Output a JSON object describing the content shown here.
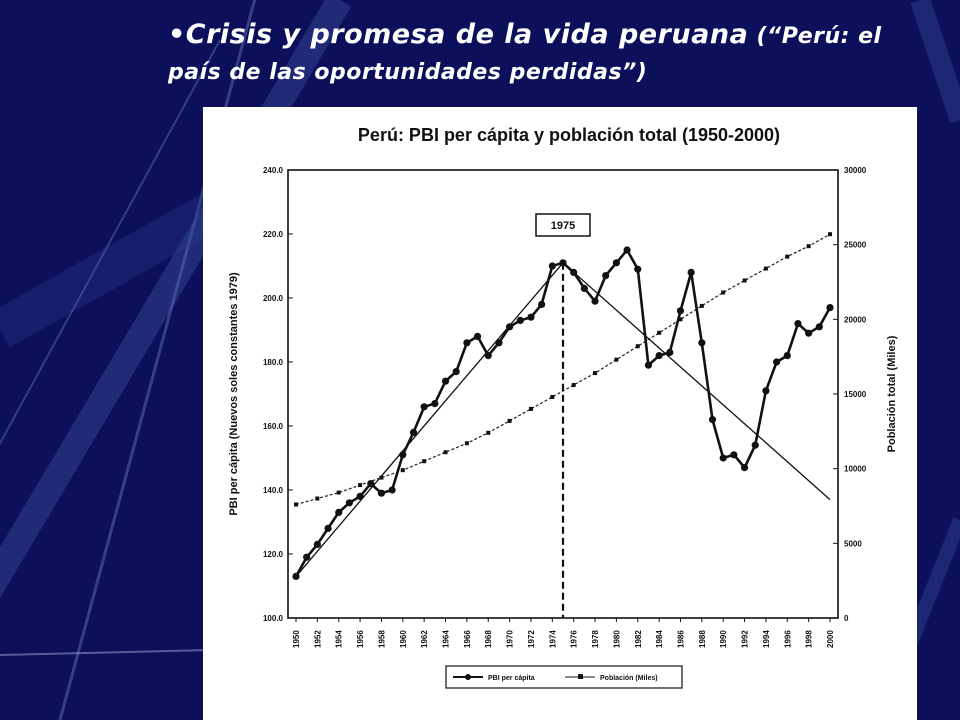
{
  "slide": {
    "title_main": "•Crisis y promesa de la vida peruana",
    "title_sub": " (“Perú: el país de las oportunidades perdidas”)"
  },
  "colors": {
    "background": "#0c0f5a",
    "title": "#ffffff",
    "chart_ink": "#111111"
  },
  "chart_data": {
    "type": "line",
    "title": "Perú: PBI per cápita y población total (1950-2000)",
    "ylabel": "PBI per cápita (Nuevos soles constantes 1979)",
    "y2label": "Población total (Miles)",
    "ylim": [
      100,
      240
    ],
    "y2lim": [
      0,
      30000
    ],
    "yticks": [
      "100.0",
      "120.0",
      "140.0",
      "160.0",
      "180.0",
      "200.0",
      "220.0",
      "240.0"
    ],
    "y2ticks": [
      "0",
      "5000",
      "10000",
      "15000",
      "20000",
      "25000",
      "30000"
    ],
    "xticks": [
      "1950",
      "1952",
      "1954",
      "1956",
      "1958",
      "1960",
      "1962",
      "1964",
      "1966",
      "1968",
      "1970",
      "1972",
      "1974",
      "1976",
      "1978",
      "1980",
      "1982",
      "1984",
      "1986",
      "1988",
      "1990",
      "1992",
      "1994",
      "1996",
      "1998",
      "2000"
    ],
    "annotation": "1975",
    "annotation_year": 1975,
    "series": [
      {
        "name": "PBI per cápita",
        "axis": "left",
        "x": [
          1950,
          1951,
          1952,
          1953,
          1954,
          1955,
          1956,
          1957,
          1958,
          1959,
          1960,
          1961,
          1962,
          1963,
          1964,
          1965,
          1966,
          1967,
          1968,
          1969,
          1970,
          1971,
          1972,
          1973,
          1974,
          1975,
          1976,
          1977,
          1978,
          1979,
          1980,
          1981,
          1982,
          1983,
          1984,
          1985,
          1986,
          1987,
          1988,
          1989,
          1990,
          1991,
          1992,
          1993,
          1994,
          1995,
          1996,
          1997,
          1998,
          1999,
          2000
        ],
        "values": [
          113,
          119,
          123,
          128,
          133,
          136,
          138,
          142,
          139,
          140,
          151,
          158,
          166,
          167,
          174,
          177,
          186,
          188,
          182,
          186,
          191,
          193,
          194,
          198,
          210,
          211,
          208,
          203,
          199,
          207,
          211,
          215,
          209,
          179,
          182,
          183,
          196,
          208,
          186,
          162,
          150,
          151,
          147,
          154,
          171,
          180,
          182,
          192,
          189,
          191,
          197
        ]
      },
      {
        "name": "Población (Miles)",
        "axis": "right",
        "x": [
          1950,
          1952,
          1954,
          1956,
          1958,
          1960,
          1962,
          1964,
          1966,
          1968,
          1970,
          1972,
          1974,
          1976,
          1978,
          1980,
          1982,
          1984,
          1986,
          1988,
          1990,
          1992,
          1994,
          1996,
          1998,
          2000
        ],
        "values": [
          7600,
          8000,
          8400,
          8900,
          9400,
          9900,
          10500,
          11100,
          11700,
          12400,
          13200,
          14000,
          14800,
          15600,
          16400,
          17300,
          18200,
          19100,
          20000,
          20900,
          21800,
          22600,
          23400,
          24200,
          24900,
          25700
        ]
      }
    ],
    "trend_lines": "two straight lines crossing at 1975",
    "legend": [
      "PBI per cápita",
      "Población (Miles)"
    ],
    "legend_position": "bottom"
  }
}
